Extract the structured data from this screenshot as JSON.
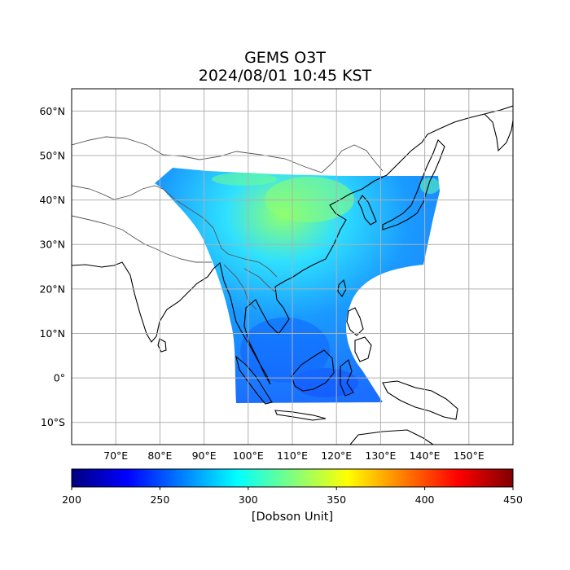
{
  "title": "GEMS O3T",
  "subtitle": "2024/08/01 10:45 KST",
  "map": {
    "lon_range": [
      60,
      160
    ],
    "lat_range": [
      -15,
      65
    ],
    "grid": true,
    "lon_ticks": [
      70,
      80,
      90,
      100,
      110,
      120,
      130,
      140,
      150
    ],
    "lat_ticks": [
      60,
      50,
      40,
      30,
      20,
      10,
      0,
      -10
    ],
    "lon_tick_labels": [
      "70°E",
      "80°E",
      "90°E",
      "100°E",
      "110°E",
      "120°E",
      "130°E",
      "140°E",
      "150°E"
    ],
    "lat_tick_labels": [
      "60°N",
      "50°N",
      "40°N",
      "30°N",
      "20°N",
      "10°N",
      "0°",
      "10°S"
    ]
  },
  "colorbar": {
    "min": 200,
    "max": 450,
    "ticks": [
      200,
      250,
      300,
      350,
      400,
      450
    ],
    "tick_labels": [
      "200",
      "250",
      "300",
      "350",
      "400",
      "450"
    ],
    "label": "[Dobson Unit]",
    "colormap": "jet",
    "colors": [
      "#00007f",
      "#0000ff",
      "#007fff",
      "#00ffff",
      "#7fff7f",
      "#ffff00",
      "#ff7f00",
      "#ff0000",
      "#7f0000"
    ]
  },
  "colors": {
    "ozone_low": "#1a7fff",
    "ozone_mid": "#1fc8ff",
    "ozone_high": "#7fff7f",
    "coastline": "#000000",
    "border": "#4d4d4d",
    "grid": "#b0b0b0"
  }
}
